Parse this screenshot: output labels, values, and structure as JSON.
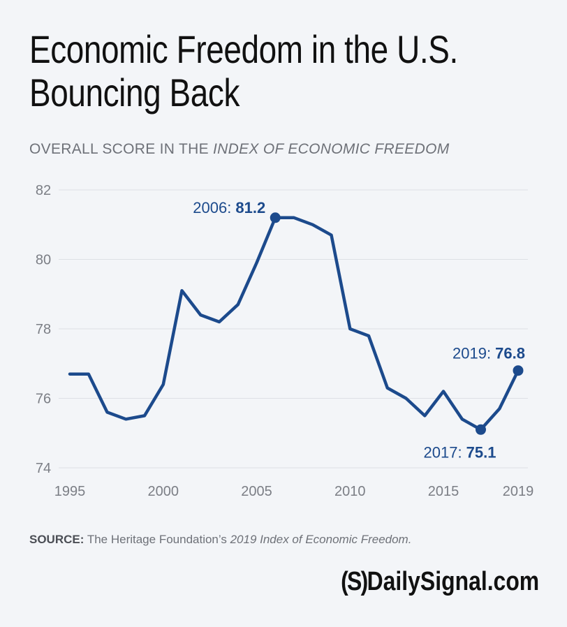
{
  "chart_data": {
    "type": "line",
    "title_lines": [
      "Economic Freedom in the U.S.",
      "Bouncing Back"
    ],
    "subtitle_prefix": "OVERALL SCORE IN THE ",
    "subtitle_italic": "INDEX OF ECONOMIC FREEDOM",
    "xlabel": "",
    "ylabel": "",
    "x": [
      1995,
      1996,
      1997,
      1998,
      1999,
      2000,
      2001,
      2002,
      2003,
      2004,
      2005,
      2006,
      2007,
      2008,
      2009,
      2010,
      2011,
      2012,
      2013,
      2014,
      2015,
      2016,
      2017,
      2018,
      2019
    ],
    "series": [
      {
        "values": [
          76.7,
          76.7,
          75.6,
          75.4,
          75.5,
          76.4,
          79.1,
          78.4,
          78.2,
          78.7,
          79.9,
          81.2,
          81.2,
          81.0,
          80.7,
          78.0,
          77.8,
          76.3,
          76.0,
          75.5,
          76.2,
          75.4,
          75.1,
          75.7,
          76.8
        ],
        "color": "#1c4a8c"
      }
    ],
    "xlim": [
      1995,
      2019
    ],
    "ylim": [
      74,
      82
    ],
    "yticks": [
      74,
      76,
      78,
      80,
      82
    ],
    "xticks": [
      1995,
      2000,
      2005,
      2010,
      2015,
      2019
    ],
    "grid": true,
    "legend": "none",
    "annotations": [
      {
        "x": 2006,
        "y": 81.2,
        "label_prefix": "2006: ",
        "label_value": "81.2",
        "placement": "left"
      },
      {
        "x": 2017,
        "y": 75.1,
        "label_prefix": "2017: ",
        "label_value": "75.1",
        "placement": "below"
      },
      {
        "x": 2019,
        "y": 76.8,
        "label_prefix": "2019: ",
        "label_value": "76.8",
        "placement": "above"
      }
    ]
  },
  "source": {
    "label": "SOURCE:",
    "text": " The Heritage Foundation’s ",
    "italic": "2019 Index of Economic Freedom."
  },
  "logo": {
    "icon_text": "(S)",
    "text": "DailySignal.com"
  },
  "colors": {
    "line": "#1c4a8c",
    "axis_text": "#7b7e85",
    "grid": "#dde0e5",
    "background": "#f3f5f8"
  }
}
